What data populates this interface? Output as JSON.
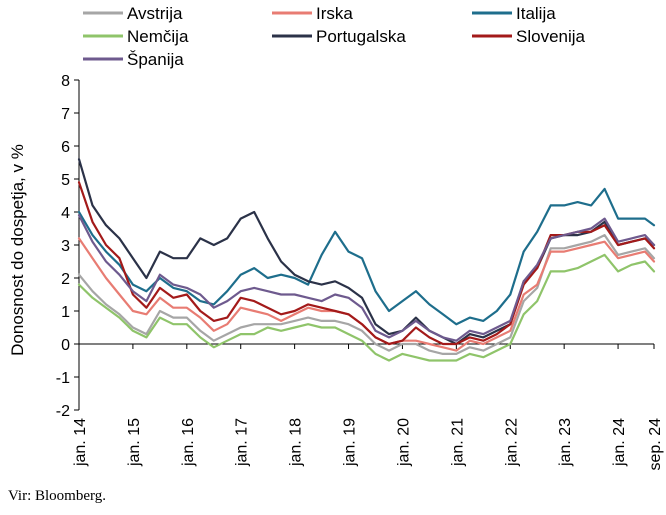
{
  "chart_data": {
    "type": "line",
    "title": "",
    "ylabel": "Donosnost do dospetja, v %",
    "xlabel": "",
    "ylim": [
      -2,
      8
    ],
    "yticks": [
      "-2",
      "-1",
      "0",
      "1",
      "2",
      "3",
      "4",
      "5",
      "6",
      "7",
      "8"
    ],
    "xticks": [
      "jan. 14",
      "jan. 15",
      "jan. 16",
      "jan. 17",
      "jan. 18",
      "jan. 19",
      "jan. 20",
      "jan. 21",
      "jan. 22",
      "jan. 23",
      "jan. 24",
      "sep. 24"
    ],
    "legend_position": "top",
    "grid": false,
    "x": [
      "2014-01",
      "2014-04",
      "2014-07",
      "2014-10",
      "2015-01",
      "2015-04",
      "2015-07",
      "2015-10",
      "2016-01",
      "2016-04",
      "2016-07",
      "2016-10",
      "2017-01",
      "2017-04",
      "2017-07",
      "2017-10",
      "2018-01",
      "2018-04",
      "2018-07",
      "2018-10",
      "2019-01",
      "2019-04",
      "2019-07",
      "2019-10",
      "2020-01",
      "2020-04",
      "2020-07",
      "2020-10",
      "2021-01",
      "2021-04",
      "2021-07",
      "2021-10",
      "2022-01",
      "2022-04",
      "2022-07",
      "2022-10",
      "2023-01",
      "2023-04",
      "2023-07",
      "2023-10",
      "2024-01",
      "2024-04",
      "2024-07",
      "2024-09"
    ],
    "series": [
      {
        "name": "Avstrija",
        "color": "#a6a6a6",
        "values": [
          2.1,
          1.6,
          1.2,
          0.9,
          0.5,
          0.3,
          1.0,
          0.8,
          0.8,
          0.4,
          0.1,
          0.3,
          0.5,
          0.6,
          0.6,
          0.6,
          0.7,
          0.8,
          0.7,
          0.7,
          0.6,
          0.4,
          0.0,
          -0.2,
          0.0,
          0.0,
          -0.2,
          -0.3,
          -0.3,
          -0.1,
          -0.2,
          0.0,
          0.2,
          1.3,
          1.7,
          2.9,
          2.9,
          3.0,
          3.1,
          3.3,
          2.7,
          2.8,
          2.9,
          2.6
        ]
      },
      {
        "name": "Irska",
        "color": "#e87c73",
        "values": [
          3.2,
          2.6,
          2.0,
          1.5,
          1.0,
          0.9,
          1.4,
          1.1,
          1.1,
          0.8,
          0.4,
          0.6,
          1.1,
          1.0,
          0.9,
          0.7,
          0.9,
          1.1,
          1.0,
          1.0,
          0.9,
          0.6,
          0.2,
          0.0,
          0.1,
          0.1,
          0.0,
          -0.1,
          -0.2,
          0.1,
          0.0,
          0.2,
          0.4,
          1.5,
          1.8,
          2.8,
          2.8,
          2.9,
          3.0,
          3.1,
          2.6,
          2.7,
          2.8,
          2.5
        ]
      },
      {
        "name": "Italija",
        "color": "#1e6e8c",
        "values": [
          4.0,
          3.3,
          2.8,
          2.4,
          1.8,
          1.6,
          2.0,
          1.7,
          1.6,
          1.3,
          1.2,
          1.6,
          2.1,
          2.3,
          2.0,
          2.1,
          2.0,
          1.8,
          2.7,
          3.4,
          2.8,
          2.6,
          1.6,
          1.0,
          1.3,
          1.6,
          1.2,
          0.9,
          0.6,
          0.8,
          0.7,
          1.0,
          1.5,
          2.8,
          3.4,
          4.2,
          4.2,
          4.3,
          4.2,
          4.7,
          3.8,
          3.8,
          3.8,
          3.6
        ]
      },
      {
        "name": "Nemčija",
        "color": "#8fc46a",
        "values": [
          1.8,
          1.4,
          1.1,
          0.8,
          0.4,
          0.2,
          0.8,
          0.6,
          0.6,
          0.2,
          -0.1,
          0.1,
          0.3,
          0.3,
          0.5,
          0.4,
          0.5,
          0.6,
          0.5,
          0.5,
          0.3,
          0.1,
          -0.3,
          -0.5,
          -0.3,
          -0.4,
          -0.5,
          -0.5,
          -0.5,
          -0.3,
          -0.4,
          -0.2,
          0.0,
          0.9,
          1.3,
          2.2,
          2.2,
          2.3,
          2.5,
          2.7,
          2.2,
          2.4,
          2.5,
          2.2
        ]
      },
      {
        "name": "Portugalska",
        "color": "#2b3248",
        "values": [
          5.6,
          4.2,
          3.6,
          3.2,
          2.6,
          2.0,
          2.8,
          2.6,
          2.6,
          3.2,
          3.0,
          3.2,
          3.8,
          4.0,
          3.2,
          2.5,
          2.1,
          1.9,
          1.8,
          1.9,
          1.7,
          1.4,
          0.6,
          0.3,
          0.4,
          0.8,
          0.4,
          0.2,
          0.0,
          0.3,
          0.2,
          0.4,
          0.6,
          1.9,
          2.3,
          3.2,
          3.3,
          3.3,
          3.4,
          3.7,
          3.0,
          3.1,
          3.2,
          3.0
        ]
      },
      {
        "name": "Slovenija",
        "color": "#a31a1a",
        "values": [
          4.9,
          3.7,
          3.0,
          2.6,
          1.5,
          1.1,
          1.7,
          1.4,
          1.5,
          1.0,
          0.7,
          0.8,
          1.4,
          1.3,
          1.1,
          0.9,
          1.0,
          1.2,
          1.1,
          1.0,
          0.9,
          0.6,
          0.2,
          0.0,
          0.1,
          0.5,
          0.2,
          0.0,
          0.0,
          0.2,
          0.1,
          0.3,
          0.6,
          1.8,
          2.3,
          3.3,
          3.3,
          3.4,
          3.4,
          3.6,
          3.0,
          3.1,
          3.2,
          2.9
        ]
      },
      {
        "name": "Španija",
        "color": "#6e5a8e",
        "values": [
          3.9,
          3.1,
          2.5,
          2.1,
          1.6,
          1.3,
          2.1,
          1.8,
          1.7,
          1.5,
          1.1,
          1.3,
          1.6,
          1.7,
          1.6,
          1.5,
          1.5,
          1.4,
          1.3,
          1.5,
          1.4,
          1.1,
          0.4,
          0.2,
          0.4,
          0.7,
          0.4,
          0.2,
          0.1,
          0.4,
          0.3,
          0.5,
          0.7,
          1.9,
          2.4,
          3.2,
          3.3,
          3.4,
          3.5,
          3.8,
          3.1,
          3.2,
          3.3,
          3.0
        ]
      }
    ],
    "source": "Vir: Bloomberg."
  }
}
